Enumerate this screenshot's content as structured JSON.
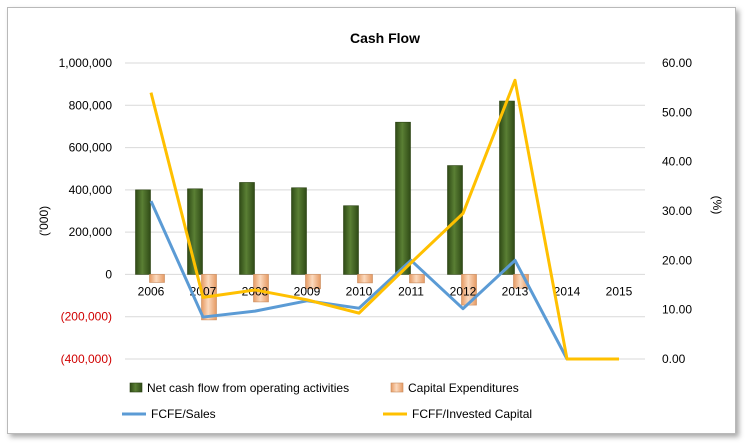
{
  "chart_data": {
    "type": "bar",
    "title": "Cash Flow",
    "ylabel": "('000)",
    "y2label": "(%)",
    "categories": [
      "2006",
      "2007",
      "2008",
      "2009",
      "2010",
      "2011",
      "2012",
      "2013",
      "2014",
      "2015"
    ],
    "ylim": [
      -400000,
      1000000
    ],
    "y2lim": [
      0,
      60
    ],
    "yticks": [
      "1,000,000",
      "800,000",
      "600,000",
      "400,000",
      "200,000",
      "0",
      "(200,000)",
      "(400,000)"
    ],
    "y2ticks": [
      "60.00",
      "50.00",
      "40.00",
      "30.00",
      "20.00",
      "10.00",
      "0.00"
    ],
    "grid": true,
    "legend_position": "bottom",
    "series": [
      {
        "name": "Net cash flow from operating activities",
        "kind": "bar",
        "axis": "left",
        "color": "#3c5a1e",
        "values": [
          400000,
          405000,
          435000,
          410000,
          325000,
          720000,
          515000,
          820000,
          null,
          null
        ]
      },
      {
        "name": "Capital Expenditures",
        "kind": "bar",
        "axis": "left",
        "color": "#f2b88e",
        "values": [
          -38000,
          -215000,
          -130000,
          -68000,
          -40000,
          -40000,
          -145000,
          -65000,
          null,
          null
        ]
      },
      {
        "name": "FCFE/Sales",
        "kind": "line",
        "axis": "right",
        "color": "#5b9bd5",
        "values": [
          32.0,
          8.5,
          9.7,
          11.8,
          10.3,
          20.0,
          10.2,
          20.0,
          0.0,
          0.0
        ]
      },
      {
        "name": "FCFF/Invested Capital",
        "kind": "line",
        "axis": "right",
        "color": "#ffc000",
        "values": [
          54.0,
          12.5,
          14.0,
          12.0,
          9.3,
          19.5,
          29.5,
          56.5,
          0.0,
          0.0
        ]
      }
    ]
  }
}
